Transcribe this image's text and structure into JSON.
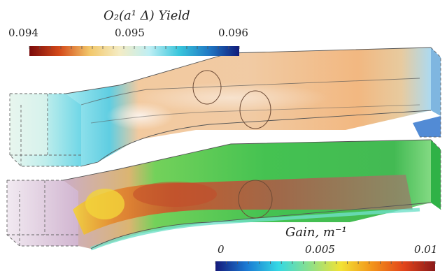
{
  "figure": {
    "top_colorbar": {
      "title": "O₂(a¹ Δ) Yield",
      "ticks": [
        "0.094",
        "0.095",
        "0.096"
      ],
      "colors": [
        "#7a0a0a",
        "#d44a1a",
        "#f2c76a",
        "#f4ecc4",
        "#bfeff4",
        "#39c6dc",
        "#1f78c4",
        "#101a7a"
      ]
    },
    "bottom_colorbar": {
      "title": "Gain, m⁻¹",
      "ticks": [
        "0",
        "0.005",
        "0.01"
      ],
      "colors": [
        "#151a7a",
        "#1a7ad4",
        "#34d8e4",
        "#8ce08a",
        "#f2e234",
        "#f2931a",
        "#e2441a",
        "#8a1a1a"
      ]
    }
  }
}
